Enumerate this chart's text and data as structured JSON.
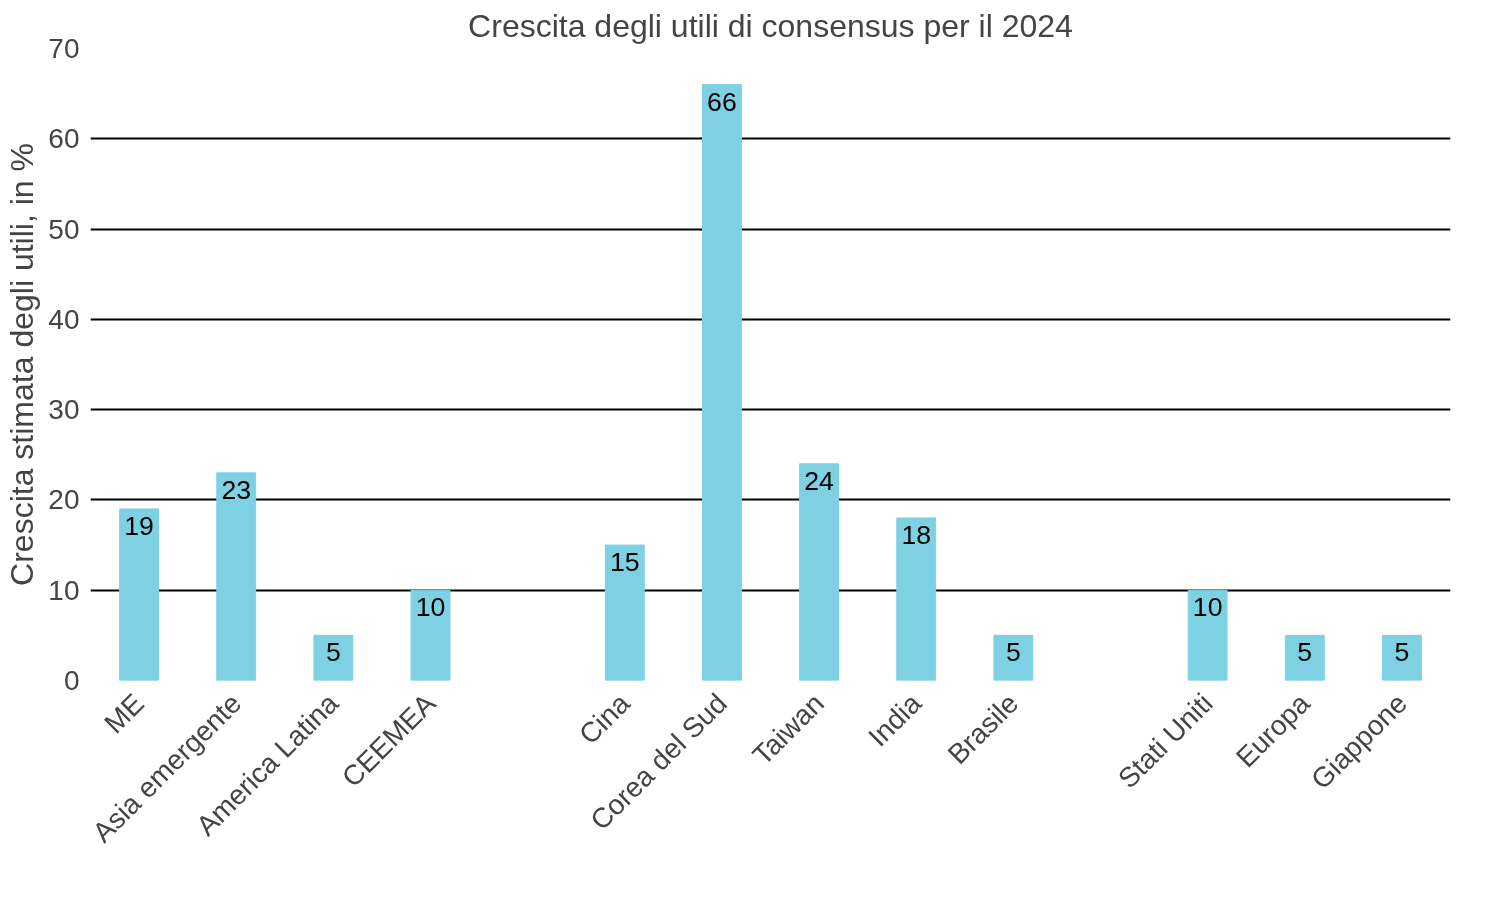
{
  "chart_data": {
    "type": "bar",
    "title": "Crescita degli utili di consensus per il 2024",
    "ylabel": "Crescita stimata degli utili, in %",
    "categories": [
      "ME",
      "Asia emergente",
      "America Latina",
      "CEEMEA",
      null,
      "Cina",
      "Corea del Sud",
      "Taiwan",
      "India",
      "Brasile",
      null,
      "Stati Uniti",
      "Europa",
      "Giappone"
    ],
    "values": [
      19,
      23,
      5,
      10,
      null,
      15,
      66,
      24,
      18,
      5,
      null,
      10,
      5,
      5
    ],
    "color": "#7ed0e3",
    "ylim": [
      0,
      70
    ],
    "yticks": [
      0,
      10,
      20,
      30,
      40,
      50,
      60,
      70
    ],
    "grid": "y",
    "data_labels": true
  }
}
